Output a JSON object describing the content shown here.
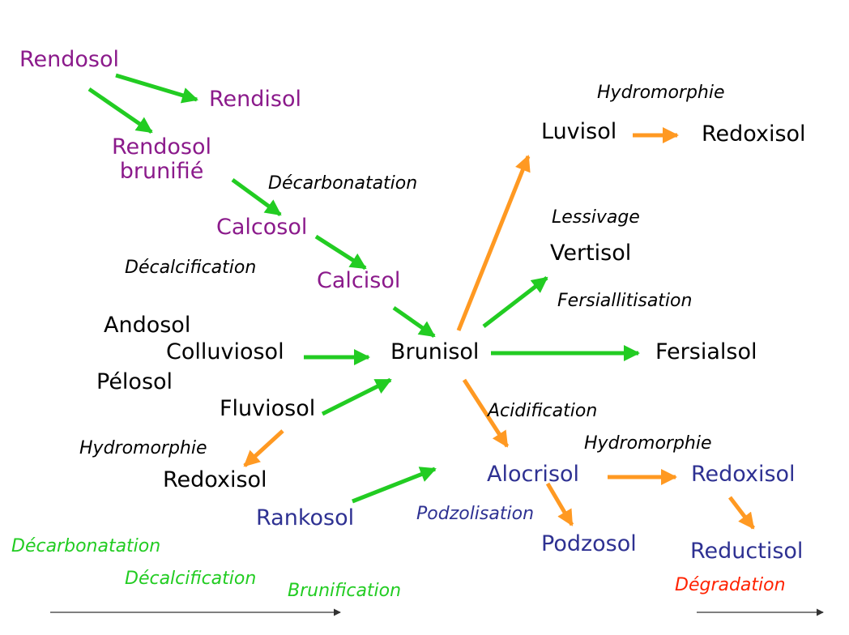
{
  "soils": {
    "rendosol": "Rendosol",
    "rendisol": "Rendisol",
    "rendosol_brunifie_line1": "Rendosol",
    "rendosol_brunifie_line2": "brunifié",
    "calcosol": "Calcosol",
    "calcisol": "Calcisol",
    "andosol": "Andosol",
    "colluviosol": "Colluviosol",
    "pelosol": "Pélosol",
    "fluviosol": "Fluviosol",
    "redoxisol_left": "Redoxisol",
    "rankosol": "Rankosol",
    "brunisol": "Brunisol",
    "luvisol": "Luvisol",
    "redoxisol_top": "Redoxisol",
    "vertisol": "Vertisol",
    "fersialsol": "Fersialsol",
    "alocrisol": "Alocrisol",
    "redoxisol_right": "Redoxisol",
    "podzosol": "Podzosol",
    "reductisol": "Reductisol"
  },
  "processes": {
    "decarbonatation": "Décarbonatation",
    "decalcification": "Décalcification",
    "hydromorphie_top": "Hydromorphie",
    "lessivage": "Lessivage",
    "fersiallitisation": "Fersiallitisation",
    "acidification": "Acidification",
    "hydromorphie_left": "Hydromorphie",
    "hydromorphie_right": "Hydromorphie",
    "podzolisation": "Podzolisation"
  },
  "legend": {
    "decarbonatation": "Décarbonatation",
    "decalcification": "Décalcification",
    "brunification": "Brunification",
    "degradation": "Dégradation"
  },
  "colors": {
    "green_arrow": "#22CC22",
    "orange_arrow": "#FF9922",
    "purple_text": "#8B1A8B",
    "blue_text": "#2E3192",
    "green_text": "#22CC22",
    "red_text": "#FF2200",
    "axis_line": "#555555"
  }
}
